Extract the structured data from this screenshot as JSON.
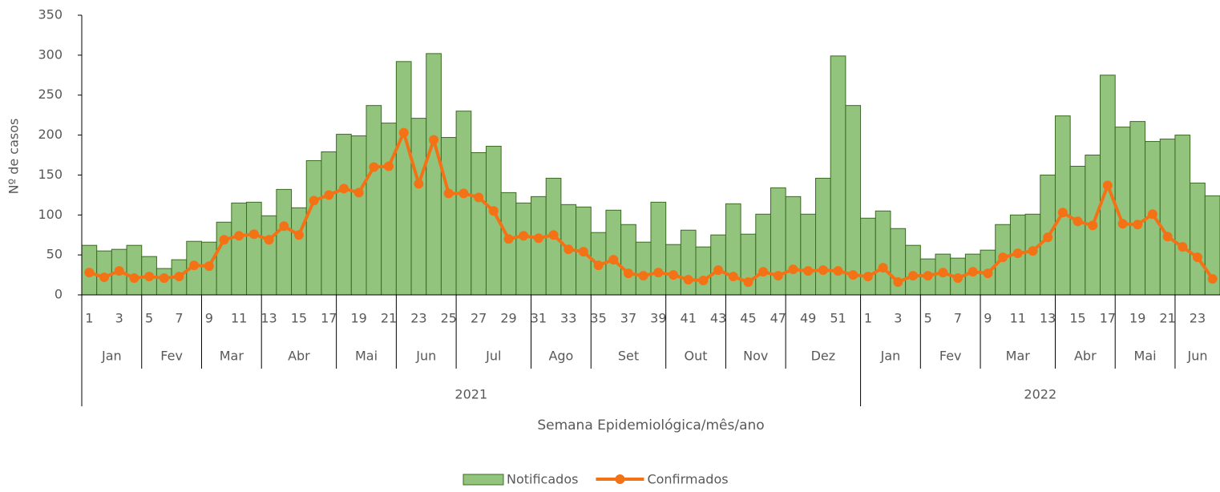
{
  "chart_data": {
    "type": "bar_line",
    "y_label": "Nº de casos",
    "x_label": "Semana Epidemiológica/mês/ano",
    "categories": [
      "1",
      null,
      "3",
      null,
      "5",
      null,
      "7",
      null,
      "9",
      null,
      "11",
      null,
      "13",
      null,
      "15",
      null,
      "17",
      null,
      "19",
      null,
      "21",
      null,
      "23",
      null,
      "25",
      null,
      "27",
      null,
      "29",
      null,
      "31",
      null,
      "33",
      null,
      "35",
      null,
      "37",
      null,
      "39",
      null,
      "41",
      null,
      "43",
      null,
      "45",
      null,
      "47",
      null,
      "49",
      null,
      "51",
      null,
      "1",
      null,
      "3",
      null,
      "5",
      null,
      "7",
      null,
      "9",
      null,
      "11",
      null,
      "13",
      null,
      "15",
      null,
      "17",
      null,
      "19",
      null,
      "21",
      null,
      "23",
      null
    ],
    "months": [
      "Jan",
      "Jan",
      "Jan",
      "Jan",
      "Fev",
      "Fev",
      "Fev",
      "Fev",
      "Mar",
      "Mar",
      "Mar",
      "Mar",
      "Abr",
      "Abr",
      "Abr",
      "Abr",
      "Abr",
      "Mai",
      "Mai",
      "Mai",
      "Mai",
      "Jun",
      "Jun",
      "Jun",
      "Jun",
      "Jul",
      "Jul",
      "Jul",
      "Jul",
      "Jul",
      "Ago",
      "Ago",
      "Ago",
      "Ago",
      "Set",
      "Set",
      "Set",
      "Set",
      "Set",
      "Out",
      "Out",
      "Out",
      "Out",
      "Nov",
      "Nov",
      "Nov",
      "Nov",
      "Dez",
      "Dez",
      "Dez",
      "Dez",
      "Dez",
      "Jan",
      "Jan",
      "Jan",
      "Jan",
      "Fev",
      "Fev",
      "Fev",
      "Fev",
      "Mar",
      "Mar",
      "Mar",
      "Mar",
      "Mar",
      "Abr",
      "Abr",
      "Abr",
      "Abr",
      "Mai",
      "Mai",
      "Mai",
      "Mai",
      "Jun",
      "Jun",
      "Jun"
    ],
    "years": [
      "2021",
      "2021",
      "2021",
      "2021",
      "2021",
      "2021",
      "2021",
      "2021",
      "2021",
      "2021",
      "2021",
      "2021",
      "2021",
      "2021",
      "2021",
      "2021",
      "2021",
      "2021",
      "2021",
      "2021",
      "2021",
      "2021",
      "2021",
      "2021",
      "2021",
      "2021",
      "2021",
      "2021",
      "2021",
      "2021",
      "2021",
      "2021",
      "2021",
      "2021",
      "2021",
      "2021",
      "2021",
      "2021",
      "2021",
      "2021",
      "2021",
      "2021",
      "2021",
      "2021",
      "2021",
      "2021",
      "2021",
      "2021",
      "2021",
      "2021",
      "2021",
      "2021",
      "2022",
      "2022",
      "2022",
      "2022",
      "2022",
      "2022",
      "2022",
      "2022",
      "2022",
      "2022",
      "2022",
      "2022",
      "2022",
      "2022",
      "2022",
      "2022",
      "2022",
      "2022",
      "2022",
      "2022",
      "2022",
      "2022",
      "2022",
      "2022"
    ],
    "series": [
      {
        "name": "Notificados",
        "kind": "bar",
        "color": "#93c47d",
        "values": [
          62,
          55,
          57,
          62,
          48,
          33,
          44,
          67,
          66,
          91,
          115,
          116,
          99,
          132,
          109,
          168,
          179,
          201,
          199,
          237,
          215,
          292,
          221,
          302,
          197,
          230,
          178,
          186,
          128,
          115,
          123,
          146,
          113,
          110,
          78,
          106,
          88,
          66,
          116,
          63,
          81,
          60,
          75,
          114,
          76,
          101,
          134,
          123,
          101,
          146,
          299,
          237,
          96,
          105,
          83,
          62,
          45,
          51,
          46,
          51,
          56,
          88,
          100,
          101,
          150,
          224,
          161,
          175,
          275,
          210,
          217,
          192,
          195,
          200,
          140,
          124
        ]
      },
      {
        "name": "Confirmados",
        "kind": "line",
        "color": "#f47216",
        "values": [
          28,
          22,
          30,
          21,
          23,
          21,
          23,
          37,
          36,
          69,
          74,
          76,
          69,
          86,
          75,
          118,
          125,
          133,
          128,
          160,
          161,
          203,
          139,
          194,
          127,
          127,
          122,
          105,
          70,
          74,
          71,
          75,
          57,
          54,
          37,
          44,
          27,
          24,
          28,
          25,
          19,
          18,
          31,
          23,
          16,
          29,
          24,
          32,
          30,
          31,
          30,
          25,
          23,
          34,
          16,
          24,
          24,
          28,
          21,
          29,
          27,
          47,
          52,
          55,
          72,
          103,
          92,
          87,
          137,
          89,
          88,
          101,
          73,
          60,
          47,
          20
        ]
      }
    ],
    "ylim": [
      0,
      350
    ],
    "yticks": [
      0,
      50,
      100,
      150,
      200,
      250,
      300,
      350
    ],
    "legend": "bottom"
  }
}
